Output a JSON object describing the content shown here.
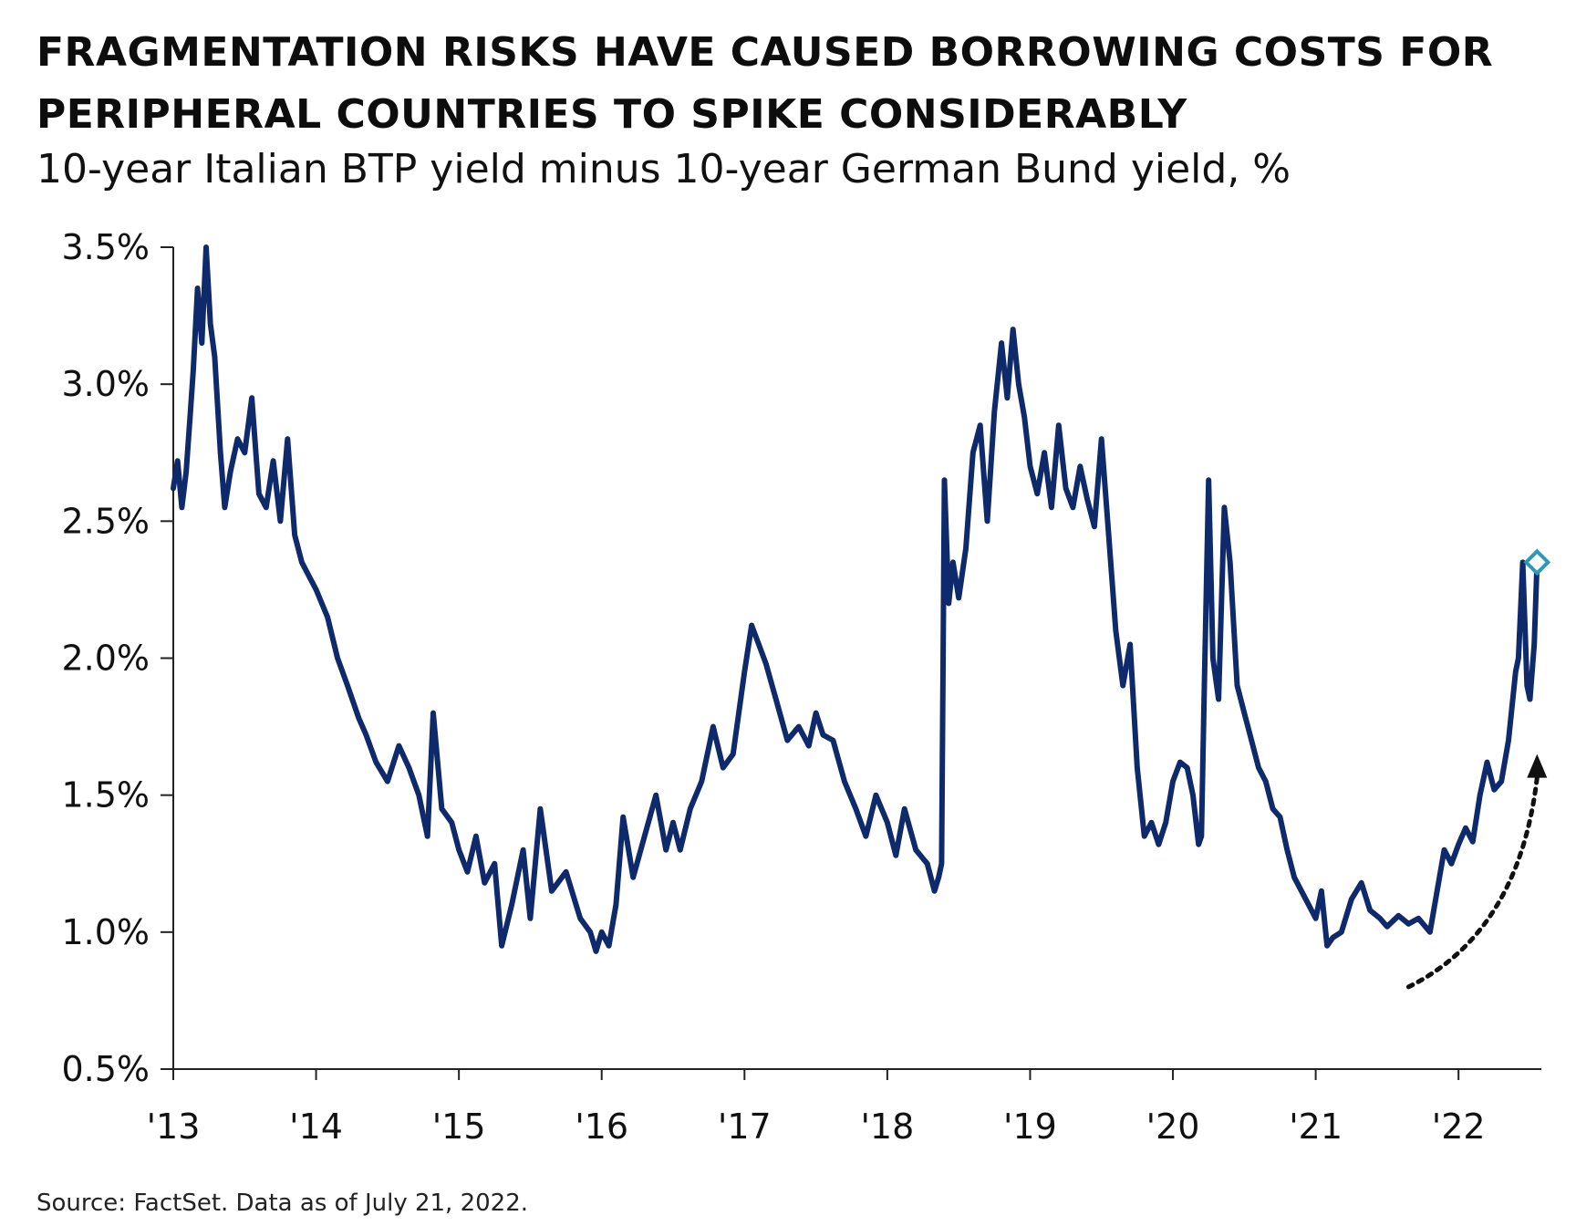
{
  "title_lines": [
    "FRAGMENTATION RISKS HAVE CAUSED BORROWING COSTS FOR",
    "PERIPHERAL COUNTRIES TO SPIKE CONSIDERABLY"
  ],
  "subtitle": "10-year Italian BTP yield minus 10-year German Bund yield, %",
  "source": "Source: FactSet. Data as of July 21, 2022.",
  "colors": {
    "line": "#0f2a6b",
    "marker": "#2a9bb5",
    "arrow": "#111111",
    "axis": "#222222"
  },
  "chart_data": {
    "type": "line",
    "title": "FRAGMENTATION RISKS HAVE CAUSED BORROWING COSTS FOR PERIPHERAL COUNTRIES TO SPIKE CONSIDERABLY",
    "subtitle": "10-year Italian BTP yield minus 10-year German Bund yield, %",
    "xlabel": "",
    "ylabel": "",
    "xlim": [
      2013.0,
      2022.58
    ],
    "ylim": [
      0.5,
      3.5
    ],
    "x_ticks": [
      2013,
      2014,
      2015,
      2016,
      2017,
      2018,
      2019,
      2020,
      2021,
      2022
    ],
    "x_tick_labels": [
      "'13",
      "'14",
      "'15",
      "'16",
      "'17",
      "'18",
      "'19",
      "'20",
      "'21",
      "'22"
    ],
    "y_ticks": [
      0.5,
      1.0,
      1.5,
      2.0,
      2.5,
      3.0,
      3.5
    ],
    "y_tick_labels": [
      "0.5%",
      "1.0%",
      "1.5%",
      "2.0%",
      "2.5%",
      "3.0%",
      "3.5%"
    ],
    "grid": false,
    "series": [
      {
        "name": "10-year Italian BTP yield minus 10-year German Bund yield",
        "x": [
          2013.0,
          2013.03,
          2013.06,
          2013.09,
          2013.12,
          2013.14,
          2013.17,
          2013.2,
          2013.23,
          2013.26,
          2013.29,
          2013.33,
          2013.36,
          2013.4,
          2013.45,
          2013.5,
          2013.55,
          2013.6,
          2013.65,
          2013.7,
          2013.75,
          2013.8,
          2013.85,
          2013.9,
          2013.95,
          2014.0,
          2014.08,
          2014.15,
          2014.22,
          2014.3,
          2014.35,
          2014.42,
          2014.5,
          2014.58,
          2014.65,
          2014.72,
          2014.78,
          2014.82,
          2014.88,
          2014.95,
          2015.0,
          2015.06,
          2015.12,
          2015.18,
          2015.25,
          2015.3,
          2015.37,
          2015.45,
          2015.5,
          2015.57,
          2015.65,
          2015.75,
          2015.85,
          2015.92,
          2015.96,
          2016.0,
          2016.05,
          2016.1,
          2016.15,
          2016.22,
          2016.3,
          2016.38,
          2016.45,
          2016.5,
          2016.55,
          2016.62,
          2016.7,
          2016.78,
          2016.85,
          2016.92,
          2017.0,
          2017.05,
          2017.1,
          2017.15,
          2017.22,
          2017.3,
          2017.38,
          2017.45,
          2017.5,
          2017.55,
          2017.62,
          2017.7,
          2017.78,
          2017.85,
          2017.92,
          2018.0,
          2018.06,
          2018.12,
          2018.2,
          2018.28,
          2018.33,
          2018.36,
          2018.38,
          2018.4,
          2018.43,
          2018.46,
          2018.5,
          2018.55,
          2018.6,
          2018.65,
          2018.7,
          2018.75,
          2018.8,
          2018.84,
          2018.88,
          2018.92,
          2018.96,
          2019.0,
          2019.05,
          2019.1,
          2019.15,
          2019.2,
          2019.25,
          2019.3,
          2019.35,
          2019.4,
          2019.45,
          2019.5,
          2019.55,
          2019.6,
          2019.65,
          2019.7,
          2019.75,
          2019.8,
          2019.85,
          2019.9,
          2019.95,
          2020.0,
          2020.05,
          2020.1,
          2020.14,
          2020.18,
          2020.2,
          2020.22,
          2020.25,
          2020.28,
          2020.32,
          2020.36,
          2020.4,
          2020.45,
          2020.5,
          2020.55,
          2020.6,
          2020.65,
          2020.7,
          2020.75,
          2020.8,
          2020.85,
          2020.9,
          2020.95,
          2021.0,
          2021.04,
          2021.08,
          2021.12,
          2021.18,
          2021.25,
          2021.32,
          2021.38,
          2021.45,
          2021.5,
          2021.58,
          2021.65,
          2021.72,
          2021.8,
          2021.85,
          2021.9,
          2021.95,
          2022.0,
          2022.05,
          2022.1,
          2022.15,
          2022.2,
          2022.25,
          2022.3,
          2022.35,
          2022.4,
          2022.42,
          2022.45,
          2022.48,
          2022.5,
          2022.53,
          2022.55
        ],
        "y": [
          2.62,
          2.72,
          2.55,
          2.68,
          2.9,
          3.05,
          3.35,
          3.15,
          3.5,
          3.22,
          3.1,
          2.75,
          2.55,
          2.68,
          2.8,
          2.75,
          2.95,
          2.6,
          2.55,
          2.72,
          2.5,
          2.8,
          2.45,
          2.35,
          2.3,
          2.25,
          2.15,
          2.0,
          1.9,
          1.78,
          1.72,
          1.62,
          1.55,
          1.68,
          1.6,
          1.5,
          1.35,
          1.8,
          1.45,
          1.4,
          1.3,
          1.22,
          1.35,
          1.18,
          1.25,
          0.95,
          1.1,
          1.3,
          1.05,
          1.45,
          1.15,
          1.22,
          1.05,
          1.0,
          0.93,
          1.0,
          0.95,
          1.1,
          1.42,
          1.2,
          1.35,
          1.5,
          1.3,
          1.4,
          1.3,
          1.45,
          1.55,
          1.75,
          1.6,
          1.65,
          1.95,
          2.12,
          2.05,
          1.98,
          1.85,
          1.7,
          1.75,
          1.68,
          1.8,
          1.72,
          1.7,
          1.55,
          1.45,
          1.35,
          1.5,
          1.4,
          1.28,
          1.45,
          1.3,
          1.25,
          1.15,
          1.2,
          1.25,
          2.65,
          2.2,
          2.35,
          2.22,
          2.4,
          2.75,
          2.85,
          2.5,
          2.9,
          3.15,
          2.95,
          3.2,
          3.0,
          2.88,
          2.7,
          2.6,
          2.75,
          2.55,
          2.85,
          2.62,
          2.55,
          2.7,
          2.58,
          2.48,
          2.8,
          2.45,
          2.1,
          1.9,
          2.05,
          1.6,
          1.35,
          1.4,
          1.32,
          1.4,
          1.55,
          1.62,
          1.6,
          1.5,
          1.32,
          1.35,
          1.9,
          2.65,
          2.0,
          1.85,
          2.55,
          2.35,
          1.9,
          1.8,
          1.7,
          1.6,
          1.55,
          1.45,
          1.42,
          1.3,
          1.2,
          1.15,
          1.1,
          1.05,
          1.15,
          0.95,
          0.98,
          1.0,
          1.12,
          1.18,
          1.08,
          1.05,
          1.02,
          1.06,
          1.03,
          1.05,
          1.0,
          1.15,
          1.3,
          1.25,
          1.32,
          1.38,
          1.33,
          1.5,
          1.62,
          1.52,
          1.55,
          1.7,
          1.95,
          2.0,
          2.35,
          1.9,
          1.85,
          2.05,
          2.35
        ]
      }
    ],
    "annotations": [
      {
        "type": "marker",
        "shape": "diamond",
        "x": 2022.55,
        "y": 2.35,
        "label": ""
      },
      {
        "type": "arrow",
        "style": "dotted",
        "from": [
          2021.65,
          0.8
        ],
        "to": [
          2022.55,
          1.65
        ],
        "label": ""
      }
    ]
  }
}
